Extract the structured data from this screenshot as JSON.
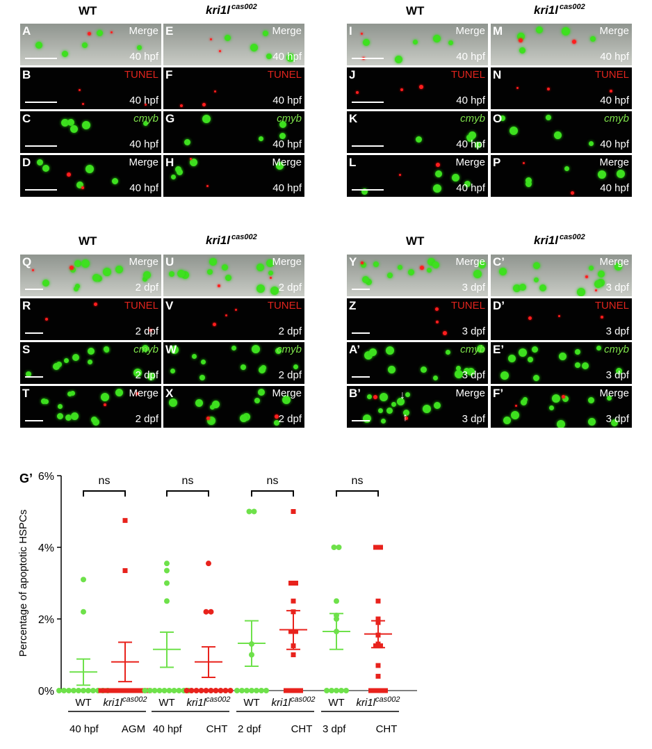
{
  "figure": {
    "headers": {
      "wt": "WT",
      "mutant_gene": "kri1l",
      "mutant_allele": "cas002"
    },
    "tags": {
      "merge": "Merge",
      "tunel": "TUNEL",
      "cmyb": "cmyb"
    },
    "times": {
      "hpf40": "40 hpf",
      "dpf2": "2 dpf",
      "dpf3": "3 dpf"
    },
    "panel_letters": {
      "A": "A",
      "B": "B",
      "C": "C",
      "D": "D",
      "E": "E",
      "F": "F",
      "G": "G",
      "H": "H",
      "I": "I",
      "J": "J",
      "K": "K",
      "L": "L",
      "M": "M",
      "N": "N",
      "O": "O",
      "P": "P",
      "Q": "Q",
      "R": "R",
      "S": "S",
      "T": "T",
      "U": "U",
      "V": "V",
      "W": "W",
      "X": "X",
      "Y": "Y",
      "Z": "Z",
      "A2": "A’",
      "B2": "B’",
      "C2": "C’",
      "D2": "D’",
      "E2": "E’",
      "F2": "F’"
    },
    "chart_label": "G’"
  },
  "chart_data": {
    "type": "scatter",
    "ylabel": "Percentage of apoptotic HSPCs",
    "yticks": [
      "0%",
      "2%",
      "4%",
      "6%"
    ],
    "ylim": [
      0,
      6
    ],
    "categories": [
      {
        "label": "WT",
        "color": "#6ee14a",
        "marker": "circle",
        "values": [
          0,
          0,
          0,
          0,
          0,
          0,
          0,
          0,
          0,
          0,
          0,
          2.2,
          3.1
        ],
        "mean": 0.52,
        "sem_low": 0.15,
        "sem_high": 0.88
      },
      {
        "label": "kri1l",
        "sup": "cas002",
        "color": "#e8221c",
        "marker": "square",
        "values": [
          0,
          0,
          0,
          0,
          0,
          0,
          0,
          0,
          0,
          0,
          0,
          3.35,
          4.75
        ],
        "mean": 0.8,
        "sem_low": 0.25,
        "sem_high": 1.35
      },
      {
        "label": "WT",
        "color": "#6ee14a",
        "marker": "circle",
        "values": [
          0,
          0,
          0,
          0,
          0,
          0,
          0,
          0,
          0,
          0,
          2.5,
          3.0,
          3.35,
          3.55
        ],
        "mean": 1.15,
        "sem_low": 0.65,
        "sem_high": 1.63
      },
      {
        "label": "kri1l",
        "sup": "cas002",
        "color": "#e8221c",
        "marker": "circle",
        "values": [
          0,
          0,
          0,
          0,
          0,
          0,
          0,
          0,
          0,
          0,
          2.2,
          2.2,
          3.55
        ],
        "mean": 0.8,
        "sem_low": 0.37,
        "sem_high": 1.22
      },
      {
        "label": "WT",
        "color": "#6ee14a",
        "marker": "circle",
        "values": [
          0,
          0,
          0,
          0,
          0,
          0,
          0,
          1.0,
          1.3,
          5.0,
          5.0
        ],
        "mean": 1.32,
        "sem_low": 0.68,
        "sem_high": 1.95
      },
      {
        "label": "kri1l",
        "sup": "cas002",
        "color": "#e8221c",
        "marker": "square",
        "values": [
          0,
          0,
          0,
          0,
          1.0,
          1.25,
          1.65,
          1.65,
          2.2,
          2.5,
          3.0,
          3.0,
          5.0
        ],
        "mean": 1.7,
        "sem_low": 1.15,
        "sem_high": 2.23
      },
      {
        "label": "WT",
        "color": "#6ee14a",
        "marker": "circle",
        "values": [
          0,
          0,
          0,
          0,
          0,
          1.65,
          2.0,
          2.1,
          2.5,
          4.0,
          4.0
        ],
        "mean": 1.65,
        "sem_low": 1.15,
        "sem_high": 2.15
      },
      {
        "label": "kri1l",
        "sup": "cas002",
        "color": "#e8221c",
        "marker": "square",
        "values": [
          0,
          0,
          0,
          0,
          0.4,
          0.7,
          1.25,
          1.25,
          1.3,
          1.55,
          1.9,
          2.0,
          2.5,
          4.0,
          4.0
        ],
        "mean": 1.58,
        "sem_low": 1.2,
        "sem_high": 1.95
      }
    ],
    "significance": [
      "ns",
      "ns",
      "ns",
      "ns"
    ],
    "groups": [
      {
        "time": "40 hpf",
        "tissue": "AGM"
      },
      {
        "time": "40 hpf",
        "tissue": "CHT"
      },
      {
        "time": "2 dpf",
        "tissue": "CHT"
      },
      {
        "time": "3 dpf",
        "tissue": "CHT"
      }
    ]
  }
}
